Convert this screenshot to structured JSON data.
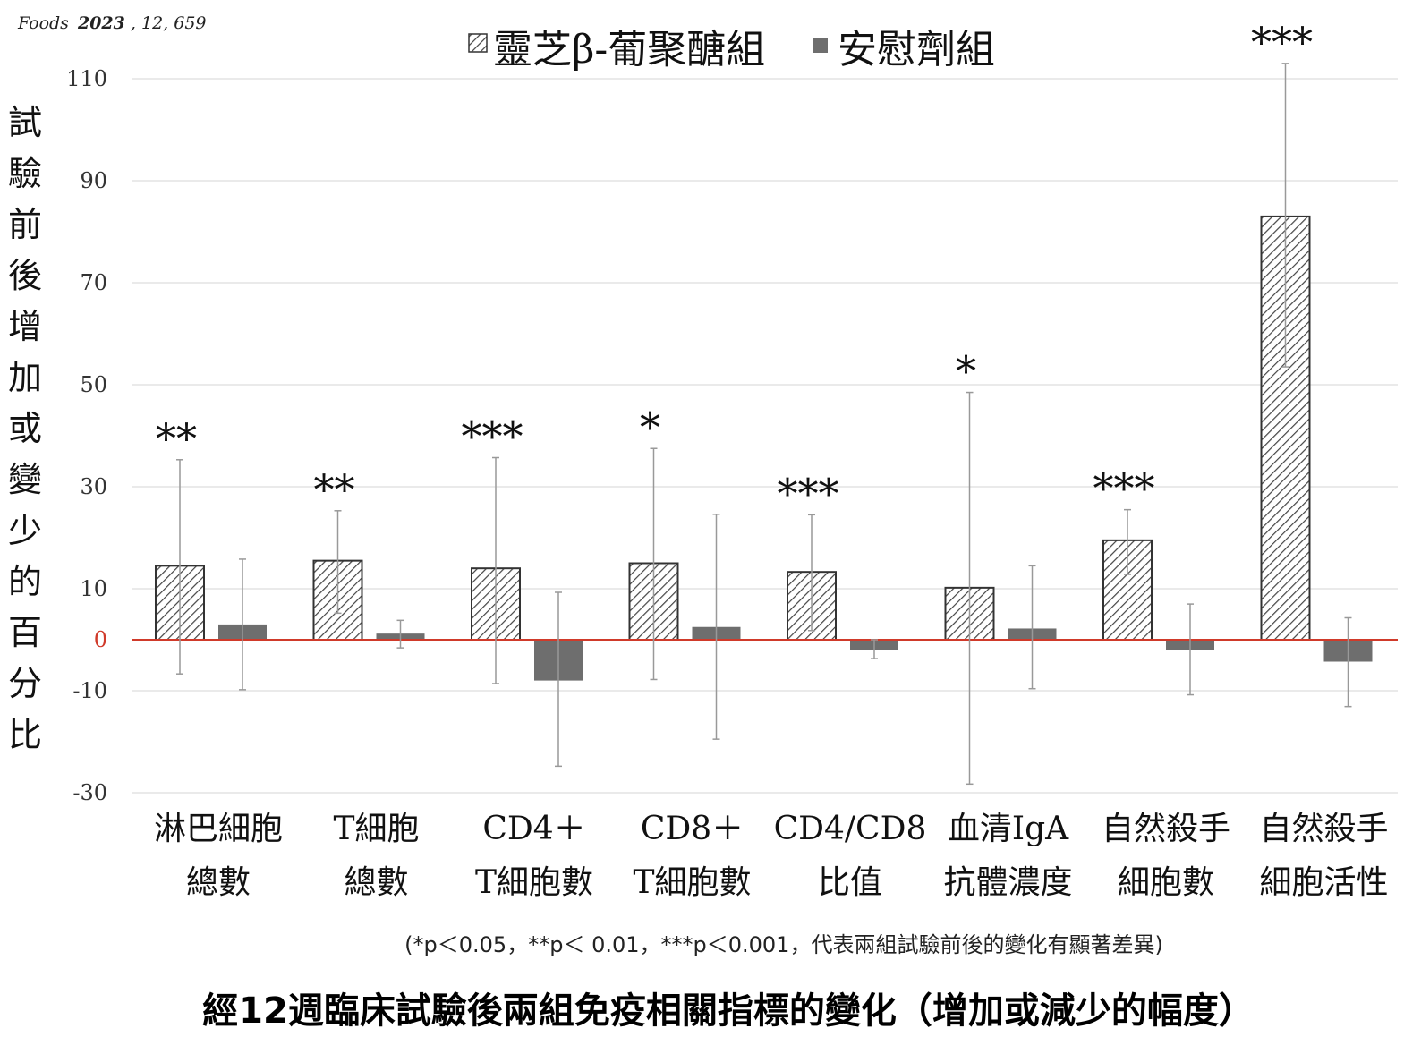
{
  "source_label": {
    "journal": "Foods",
    "year": "2023",
    "rest": ", 12, 659"
  },
  "chart_data": {
    "type": "bar",
    "title": "經12週臨床試驗後兩組免疫相關指標的變化（增加或減少的幅度）",
    "note": "(*p＜0.05，**p＜ 0.01，***p＜0.001，代表兩組試驗前後的變化有顯著差異)",
    "ylabel": "試驗前後增加或變少的百分比",
    "ylim": [
      -30,
      115
    ],
    "yticks": [
      110,
      90,
      70,
      50,
      30,
      10,
      0,
      -10,
      -30
    ],
    "categories": [
      [
        "淋巴細胞",
        "總數"
      ],
      [
        "T細胞",
        "總數"
      ],
      [
        "CD4＋",
        "T細胞數"
      ],
      [
        "CD8＋",
        "T細胞數"
      ],
      [
        "CD4/CD8",
        "比值"
      ],
      [
        "血清IgA",
        "抗體濃度"
      ],
      [
        "自然殺手",
        "細胞數"
      ],
      [
        "自然殺手",
        "細胞活性"
      ]
    ],
    "series": [
      {
        "name": "靈芝β-葡聚醣組",
        "pattern": "hatched",
        "values": [
          14.5,
          15.5,
          14,
          15,
          13.3,
          10.2,
          19.5,
          83
        ],
        "err_low": [
          -6.7,
          5.2,
          -8.6,
          -7.8,
          1.8,
          -28.3,
          12.8,
          53.5
        ],
        "err_high": [
          35.3,
          25.3,
          35.7,
          37.5,
          24.5,
          48.5,
          25.5,
          113
        ]
      },
      {
        "name": "安慰劑組",
        "pattern": "solid",
        "values": [
          3,
          1.2,
          -8,
          2.5,
          -2,
          2.2,
          -2,
          -4.3
        ],
        "err_low": [
          -9.8,
          -1.6,
          -24.8,
          -19.5,
          -3.7,
          -9.6,
          -10.8,
          -13.1
        ],
        "err_high": [
          15.8,
          3.8,
          9.3,
          24.6,
          0,
          14.5,
          7,
          4.3
        ]
      }
    ],
    "significance": [
      "**",
      "**",
      "***",
      "*",
      "***",
      "*",
      "***",
      "***"
    ],
    "colors": {
      "hatch": "#444444",
      "placebo": "#6e6e6e",
      "grid": "#e4e4e4",
      "zero_line": "#d03a2a",
      "error_bar": "#999999",
      "text": "#111111"
    }
  }
}
